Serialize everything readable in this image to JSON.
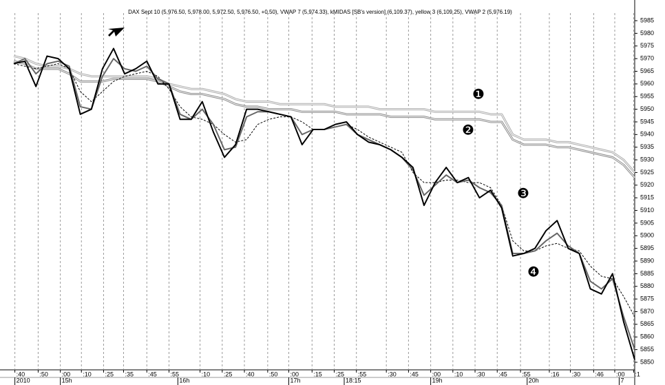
{
  "chart_data": {
    "type": "line",
    "title": "DAX Sept 10 (5,976.50, 5,978.00, 5,972.50, 5,976.50, +0.50), VWAP 7 (5,974.33), kMIDAS [SB's version] (6,109.37), yellow 3 (6,109.25), VWAP 2 (5,976.19)",
    "annotations": [
      "❶",
      "❷",
      "❸",
      "❹"
    ],
    "x": [
      0,
      1,
      2,
      3,
      4,
      5,
      6,
      7,
      8,
      9,
      10,
      11,
      12,
      13,
      14,
      15,
      16,
      17,
      18,
      19,
      20,
      21,
      22,
      23,
      24,
      25,
      26,
      27,
      28,
      29,
      30,
      31,
      32,
      33,
      34,
      35,
      36,
      37,
      38,
      39,
      40,
      41,
      42,
      43,
      44,
      45,
      46,
      47,
      48,
      49,
      50,
      51,
      52,
      53,
      54,
      55,
      56
    ],
    "xlim": [
      0,
      56
    ],
    "xticks": [
      {
        "value": 0.1,
        "label": ":40"
      },
      {
        "value": 2.2,
        "label": ":50"
      },
      {
        "value": 4.2,
        "label": ":00"
      },
      {
        "value": 6.1,
        "label": ":10"
      },
      {
        "value": 8.1,
        "label": ":25"
      },
      {
        "value": 9.9,
        "label": ":35"
      },
      {
        "value": 12,
        "label": ":45"
      },
      {
        "value": 14,
        "label": ":55"
      },
      {
        "value": 16.8,
        "label": ":10"
      },
      {
        "value": 18.8,
        "label": ":25"
      },
      {
        "value": 20.8,
        "label": ":40"
      },
      {
        "value": 22.9,
        "label": ":50"
      },
      {
        "value": 24.8,
        "label": ":00"
      },
      {
        "value": 26.9,
        "label": ":15"
      },
      {
        "value": 28.9,
        "label": ":25"
      },
      {
        "value": 30.9,
        "label": ":55"
      },
      {
        "value": 33.6,
        "label": ":30"
      },
      {
        "value": 35.6,
        "label": ":45"
      },
      {
        "value": 37.6,
        "label": ":00"
      },
      {
        "value": 39.6,
        "label": ":10"
      },
      {
        "value": 41.6,
        "label": ":30"
      },
      {
        "value": 43.6,
        "label": ":45"
      },
      {
        "value": 45.7,
        "label": ":55"
      },
      {
        "value": 48.3,
        "label": ":16"
      },
      {
        "value": 50.2,
        "label": ":30"
      },
      {
        "value": 52.3,
        "label": ":46"
      },
      {
        "value": 54.2,
        "label": ":00"
      },
      {
        "value": 55.9,
        "label": ":1"
      }
    ],
    "xlabels2": [
      {
        "value": 0.1,
        "label": "2010"
      },
      {
        "value": 4.2,
        "label": "15h"
      },
      {
        "value": 14.8,
        "label": "16h"
      },
      {
        "value": 24.8,
        "label": "17h"
      },
      {
        "value": 29.8,
        "label": "18:15"
      },
      {
        "value": 37.6,
        "label": "19h"
      },
      {
        "value": 46.3,
        "label": "20h"
      },
      {
        "value": 54.6,
        "label": "7"
      }
    ],
    "ylim": [
      5847,
      5988
    ],
    "yticks": [
      5850,
      5855,
      5860,
      5865,
      5870,
      5875,
      5880,
      5885,
      5890,
      5895,
      5900,
      5905,
      5910,
      5915,
      5920,
      5925,
      5930,
      5935,
      5940,
      5945,
      5950,
      5955,
      5960,
      5965,
      5970,
      5975,
      5980,
      5985
    ],
    "grid": true,
    "series": [
      {
        "color": "#aaaaaa",
        "double": true,
        "values": [
          5971,
          5970,
          5968,
          5967,
          5967,
          5966,
          5964,
          5963,
          5963,
          5963,
          5963,
          5963,
          5963,
          5962,
          5960,
          5959,
          5958,
          5958,
          5957,
          5956,
          5954,
          5953,
          5953,
          5953,
          5952,
          5952,
          5952,
          5952,
          5952,
          5951,
          5951,
          5951,
          5951,
          5950,
          5950,
          5950,
          5950,
          5950,
          5949,
          5949,
          5949,
          5949,
          5949,
          5948,
          5948,
          5940,
          5938,
          5938,
          5938,
          5937,
          5937,
          5936,
          5935,
          5934,
          5933,
          5930,
          5925
        ]
      },
      {
        "color": "#888888",
        "double": true,
        "values": [
          5969,
          5968,
          5966,
          5966,
          5966,
          5964,
          5961,
          5961,
          5961,
          5962,
          5962,
          5962,
          5962,
          5961,
          5959,
          5957,
          5956,
          5956,
          5955,
          5954,
          5952,
          5951,
          5951,
          5950,
          5950,
          5950,
          5949,
          5949,
          5949,
          5949,
          5948,
          5948,
          5948,
          5948,
          5947,
          5947,
          5947,
          5947,
          5946,
          5946,
          5946,
          5946,
          5946,
          5945,
          5945,
          5938,
          5936,
          5936,
          5936,
          5935,
          5935,
          5934,
          5933,
          5932,
          5931,
          5928,
          5923
        ]
      },
      {
        "color": "#000000",
        "dashed": true,
        "values": [
          5968,
          5967,
          5966,
          5967,
          5968,
          5966,
          5957,
          5953,
          5957,
          5961,
          5963,
          5964,
          5965,
          5963,
          5958,
          5951,
          5947,
          5946,
          5944,
          5940,
          5937,
          5938,
          5944,
          5946,
          5947,
          5947,
          5945,
          5942,
          5942,
          5943,
          5944,
          5942,
          5939,
          5937,
          5935,
          5933,
          5925,
          5921,
          5921,
          5922,
          5922,
          5921,
          5921,
          5919,
          5912,
          5898,
          5894,
          5894,
          5896,
          5897,
          5895,
          5894,
          5888,
          5884,
          5883,
          5876,
          5868
        ]
      },
      {
        "color": "#666666",
        "values": [
          5968,
          5970,
          5964,
          5968,
          5969,
          5967,
          5951,
          5950,
          5963,
          5970,
          5966,
          5965,
          5967,
          5962,
          5960,
          5948,
          5946,
          5950,
          5944,
          5934,
          5935,
          5947,
          5949,
          5949,
          5948,
          5947,
          5940,
          5942,
          5942,
          5943,
          5944,
          5940,
          5938,
          5936,
          5934,
          5931,
          5926,
          5916,
          5920,
          5924,
          5921,
          5922,
          5919,
          5917,
          5912,
          5893,
          5893,
          5894,
          5898,
          5901,
          5896,
          5893,
          5882,
          5879,
          5883,
          5868,
          5855
        ]
      },
      {
        "color": "#000000",
        "values": [
          5968,
          5969,
          5959,
          5971,
          5970,
          5966,
          5948,
          5950,
          5966,
          5974,
          5964,
          5966,
          5969,
          5960,
          5960,
          5946,
          5946,
          5953,
          5941,
          5931,
          5936,
          5950,
          5950,
          5949,
          5948,
          5947,
          5936,
          5942,
          5942,
          5944,
          5945,
          5940,
          5937,
          5936,
          5934,
          5931,
          5927,
          5912,
          5921,
          5927,
          5921,
          5923,
          5915,
          5918,
          5911,
          5892,
          5893,
          5895,
          5902,
          5906,
          5895,
          5893,
          5879,
          5877,
          5885,
          5866,
          5851
        ]
      }
    ]
  }
}
